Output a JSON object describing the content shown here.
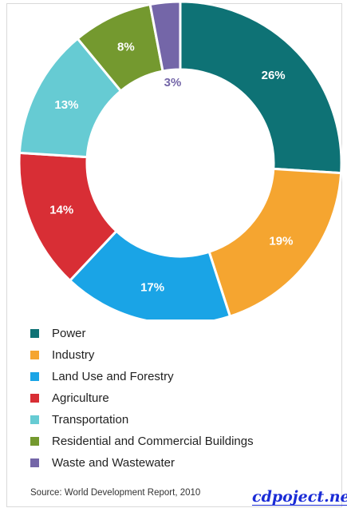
{
  "chart_data": {
    "type": "pie",
    "categories": [
      "Power",
      "Industry",
      "Land Use and Forestry",
      "Agriculture",
      "Transportation",
      "Residential and Commercial Buildings",
      "Waste and Wastewater"
    ],
    "values": [
      26,
      19,
      17,
      14,
      13,
      8,
      3
    ],
    "value_labels": [
      "26%",
      "19%",
      "17%",
      "14%",
      "13%",
      "8%",
      "3%"
    ],
    "colors": [
      "#0e7275",
      "#f5a530",
      "#1aa4e6",
      "#d82e35",
      "#66cbd3",
      "#74992f",
      "#7466a8"
    ],
    "donut": true,
    "legend_position": "bottom-left",
    "source": "Source: World Development Report, 2010"
  },
  "watermark": "cdpoject.net"
}
